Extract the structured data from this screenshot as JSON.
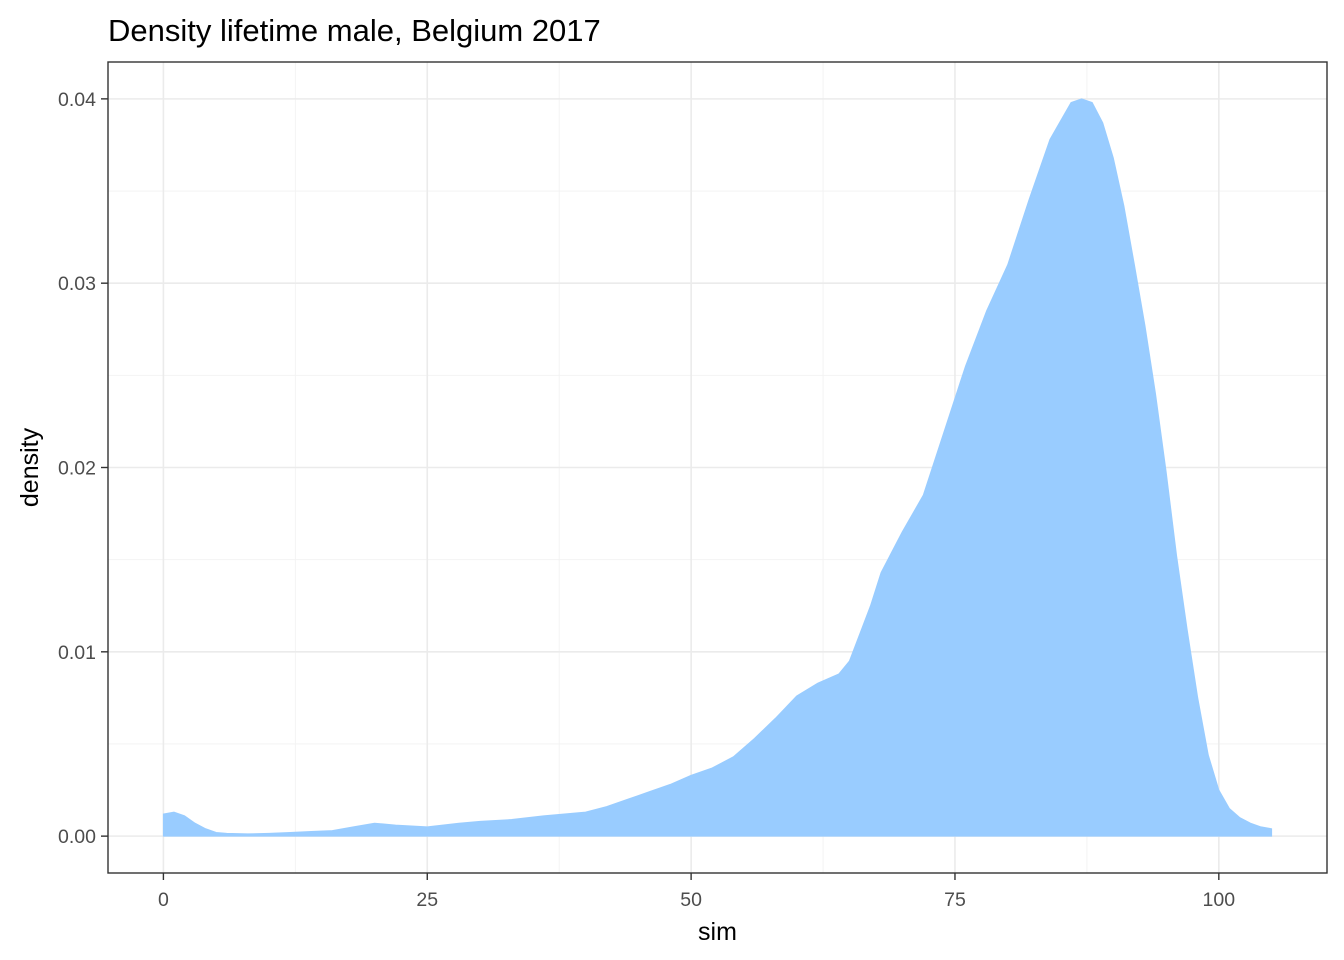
{
  "chart_data": {
    "type": "area",
    "title": "Density lifetime male, Belgium 2017",
    "xlabel": "sim",
    "ylabel": "density",
    "xlim": [
      -5.25,
      110.25
    ],
    "ylim": [
      -0.002,
      0.042
    ],
    "x_ticks": [
      0,
      25,
      50,
      75,
      100
    ],
    "x_tick_labels": [
      "0",
      "25",
      "50",
      "75",
      "100"
    ],
    "y_ticks": [
      0.0,
      0.01,
      0.02,
      0.03,
      0.04
    ],
    "y_tick_labels": [
      "0.00",
      "0.01",
      "0.02",
      "0.03",
      "0.04"
    ],
    "grid": true,
    "legend": "none",
    "fill_color": "#99ccff",
    "series": [
      {
        "x": [
          0,
          1,
          2,
          3,
          4,
          5,
          6,
          8,
          10,
          12,
          14,
          16,
          18,
          20,
          22,
          25,
          28,
          30,
          33,
          36,
          40,
          42,
          44,
          46,
          48,
          50,
          52,
          54,
          56,
          58,
          60,
          62,
          64,
          65,
          66,
          67,
          68,
          70,
          72,
          74,
          76,
          78,
          80,
          82,
          84,
          86,
          87,
          88,
          89,
          90,
          91,
          92,
          93,
          94,
          95,
          96,
          97,
          98,
          99,
          100,
          101,
          102,
          103,
          104,
          105
        ],
        "y": [
          0.0012,
          0.0013,
          0.0011,
          0.0007,
          0.0004,
          0.0002,
          0.00015,
          0.00012,
          0.00015,
          0.0002,
          0.00025,
          0.0003,
          0.0005,
          0.0007,
          0.0006,
          0.0005,
          0.0007,
          0.0008,
          0.0009,
          0.0011,
          0.0013,
          0.0016,
          0.002,
          0.0024,
          0.0028,
          0.0033,
          0.0037,
          0.0043,
          0.0053,
          0.0064,
          0.0076,
          0.0083,
          0.0088,
          0.0095,
          0.011,
          0.0125,
          0.0143,
          0.0165,
          0.0185,
          0.022,
          0.0255,
          0.0285,
          0.031,
          0.0345,
          0.0378,
          0.0398,
          0.04,
          0.0398,
          0.0387,
          0.0368,
          0.0342,
          0.031,
          0.0277,
          0.024,
          0.0198,
          0.0152,
          0.0112,
          0.0075,
          0.0044,
          0.0025,
          0.0015,
          0.001,
          0.0007,
          0.0005,
          0.0004
        ]
      }
    ]
  }
}
